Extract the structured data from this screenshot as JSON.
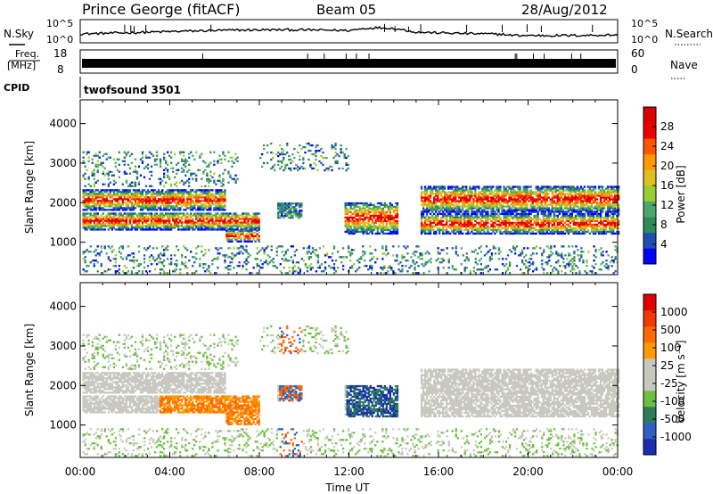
{
  "header": {
    "station": "Prince George (fitACF)",
    "beam": "Beam 05",
    "date": "28/Aug/2012"
  },
  "top_panels": {
    "nsky_label": "N.Sky",
    "nsearch_label": "N.Search",
    "freq_label_1": "Freq.",
    "freq_label_2": "[MHz]",
    "nave_label": "Nave",
    "cpid_label": "CPID",
    "noise_ticks_left": [
      "10^5",
      "10^0"
    ],
    "noise_ticks_right": [
      "10^5",
      "10^0"
    ],
    "freq_ticks_left": [
      "18",
      "8"
    ],
    "nave_ticks_right": [
      "60",
      "0"
    ],
    "cpid_name": "twofsound 3501"
  },
  "colors": {
    "power_scale": [
      "#0000ff",
      "#1e50b4",
      "#2e8b57",
      "#4aa86b",
      "#9acd32",
      "#e0c020",
      "#ff9900",
      "#ff5500",
      "#ee0000",
      "#dd0000"
    ],
    "velocity_scale": [
      "#1c2eb0",
      "#2f5fc0",
      "#2e7d5a",
      "#6cc040",
      "#c8c8c0",
      "#c8c8c0",
      "#ff9a00",
      "#ff6a00",
      "#f03a00",
      "#e00000"
    ]
  },
  "chart_data": [
    {
      "type": "heatmap",
      "name": "power",
      "ylabel": "Slant Range [km]",
      "xlabel": "Time UT",
      "yticks": [
        "1000",
        "2000",
        "3000",
        "4000"
      ],
      "xticks": [
        "00:00",
        "04:00",
        "08:00",
        "12:00",
        "16:00",
        "20:00",
        "00:00"
      ],
      "ylim": [
        180,
        4600
      ],
      "xlim": [
        0,
        24
      ],
      "colorbar_label": "Power [dB]",
      "colorbar_ticks": [
        "4",
        "8",
        "12",
        "16",
        "20",
        "24",
        "28"
      ],
      "colorbar_range": [
        0,
        32
      ]
    },
    {
      "type": "heatmap",
      "name": "velocity",
      "ylabel": "Slant Range [km]",
      "xlabel": "Time UT",
      "yticks": [
        "1000",
        "2000",
        "3000",
        "4000"
      ],
      "xticks": [
        "00:00",
        "04:00",
        "08:00",
        "12:00",
        "16:00",
        "20:00",
        "00:00"
      ],
      "ylim": [
        180,
        4600
      ],
      "xlim": [
        0,
        24
      ],
      "colorbar_label": "Velocity [m s⁻¹]",
      "colorbar_ticks": [
        "-1000",
        "-500",
        "-100",
        "-25",
        "25",
        "100",
        "500",
        "1000"
      ]
    }
  ],
  "x_axis_title": "Time UT"
}
